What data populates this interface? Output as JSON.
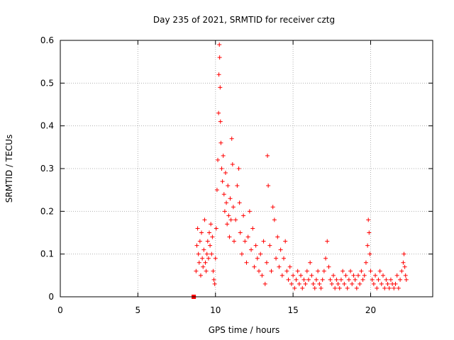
{
  "chart_data": {
    "type": "scatter",
    "title": "Day 235 of 2021, SRMTID for receiver cztg",
    "xlabel": "GPS time / hours",
    "ylabel": "SRMTID / TECUs",
    "xlim": [
      0,
      24
    ],
    "ylim": [
      0,
      0.6
    ],
    "x_ticks": [
      0,
      5,
      10,
      15,
      20
    ],
    "x_tick_labels": [
      "0",
      "5",
      "10",
      "15",
      "20"
    ],
    "y_ticks": [
      0,
      0.1,
      0.2,
      0.3,
      0.4,
      0.5,
      0.6
    ],
    "y_tick_labels": [
      "0",
      "0.1",
      "0.2",
      "0.3",
      "0.4",
      "0.5",
      "0.6"
    ],
    "grid": true,
    "marker": "+",
    "color": "#ff0000",
    "square_marker_point": {
      "x": 8.6,
      "y": 0.0
    },
    "series": [
      {
        "name": "SRMTID",
        "points": [
          [
            8.75,
            0.06
          ],
          [
            8.8,
            0.12
          ],
          [
            8.85,
            0.16
          ],
          [
            8.9,
            0.1
          ],
          [
            8.95,
            0.08
          ],
          [
            9.0,
            0.13
          ],
          [
            9.05,
            0.05
          ],
          [
            9.1,
            0.15
          ],
          [
            9.15,
            0.09
          ],
          [
            9.2,
            0.07
          ],
          [
            9.25,
            0.11
          ],
          [
            9.3,
            0.18
          ],
          [
            9.35,
            0.08
          ],
          [
            9.4,
            0.06
          ],
          [
            9.45,
            0.1
          ],
          [
            9.5,
            0.13
          ],
          [
            9.55,
            0.09
          ],
          [
            9.6,
            0.15
          ],
          [
            9.65,
            0.12
          ],
          [
            9.7,
            0.17
          ],
          [
            9.75,
            0.1
          ],
          [
            9.8,
            0.14
          ],
          [
            9.85,
            0.06
          ],
          [
            9.9,
            0.04
          ],
          [
            9.95,
            0.03
          ],
          [
            10.0,
            0.09
          ],
          [
            10.05,
            0.16
          ],
          [
            10.1,
            0.25
          ],
          [
            10.15,
            0.32
          ],
          [
            10.2,
            0.43
          ],
          [
            10.22,
            0.52
          ],
          [
            10.25,
            0.59
          ],
          [
            10.27,
            0.56
          ],
          [
            10.3,
            0.49
          ],
          [
            10.32,
            0.41
          ],
          [
            10.35,
            0.36
          ],
          [
            10.4,
            0.3
          ],
          [
            10.45,
            0.27
          ],
          [
            10.5,
            0.33
          ],
          [
            10.55,
            0.24
          ],
          [
            10.6,
            0.2
          ],
          [
            10.65,
            0.29
          ],
          [
            10.7,
            0.22
          ],
          [
            10.75,
            0.17
          ],
          [
            10.8,
            0.26
          ],
          [
            10.85,
            0.19
          ],
          [
            10.9,
            0.14
          ],
          [
            10.95,
            0.23
          ],
          [
            11.0,
            0.18
          ],
          [
            11.05,
            0.37
          ],
          [
            11.1,
            0.31
          ],
          [
            11.15,
            0.21
          ],
          [
            11.2,
            0.13
          ],
          [
            11.3,
            0.18
          ],
          [
            11.4,
            0.26
          ],
          [
            11.5,
            0.3
          ],
          [
            11.55,
            0.22
          ],
          [
            11.6,
            0.15
          ],
          [
            11.7,
            0.1
          ],
          [
            11.8,
            0.19
          ],
          [
            11.9,
            0.13
          ],
          [
            12.0,
            0.08
          ],
          [
            12.1,
            0.14
          ],
          [
            12.2,
            0.2
          ],
          [
            12.3,
            0.11
          ],
          [
            12.4,
            0.16
          ],
          [
            12.5,
            0.07
          ],
          [
            12.6,
            0.12
          ],
          [
            12.7,
            0.09
          ],
          [
            12.8,
            0.06
          ],
          [
            12.9,
            0.1
          ],
          [
            13.0,
            0.05
          ],
          [
            13.1,
            0.13
          ],
          [
            13.2,
            0.03
          ],
          [
            13.3,
            0.08
          ],
          [
            13.35,
            0.33
          ],
          [
            13.4,
            0.26
          ],
          [
            13.5,
            0.12
          ],
          [
            13.6,
            0.06
          ],
          [
            13.7,
            0.21
          ],
          [
            13.8,
            0.18
          ],
          [
            13.9,
            0.09
          ],
          [
            14.0,
            0.14
          ],
          [
            14.1,
            0.07
          ],
          [
            14.2,
            0.11
          ],
          [
            14.3,
            0.05
          ],
          [
            14.4,
            0.09
          ],
          [
            14.5,
            0.13
          ],
          [
            14.6,
            0.06
          ],
          [
            14.7,
            0.04
          ],
          [
            14.8,
            0.07
          ],
          [
            14.9,
            0.03
          ],
          [
            15.0,
            0.05
          ],
          [
            15.1,
            0.02
          ],
          [
            15.2,
            0.04
          ],
          [
            15.3,
            0.06
          ],
          [
            15.4,
            0.03
          ],
          [
            15.5,
            0.05
          ],
          [
            15.6,
            0.02
          ],
          [
            15.7,
            0.04
          ],
          [
            15.8,
            0.03
          ],
          [
            15.9,
            0.06
          ],
          [
            16.0,
            0.04
          ],
          [
            16.1,
            0.08
          ],
          [
            16.2,
            0.05
          ],
          [
            16.3,
            0.03
          ],
          [
            16.4,
            0.02
          ],
          [
            16.5,
            0.04
          ],
          [
            16.6,
            0.06
          ],
          [
            16.7,
            0.03
          ],
          [
            16.8,
            0.02
          ],
          [
            16.9,
            0.04
          ],
          [
            17.0,
            0.06
          ],
          [
            17.1,
            0.09
          ],
          [
            17.2,
            0.13
          ],
          [
            17.3,
            0.07
          ],
          [
            17.4,
            0.04
          ],
          [
            17.5,
            0.03
          ],
          [
            17.6,
            0.05
          ],
          [
            17.7,
            0.02
          ],
          [
            17.8,
            0.04
          ],
          [
            17.9,
            0.03
          ],
          [
            18.0,
            0.02
          ],
          [
            18.1,
            0.04
          ],
          [
            18.2,
            0.06
          ],
          [
            18.3,
            0.03
          ],
          [
            18.4,
            0.05
          ],
          [
            18.5,
            0.02
          ],
          [
            18.6,
            0.04
          ],
          [
            18.7,
            0.06
          ],
          [
            18.8,
            0.03
          ],
          [
            18.9,
            0.05
          ],
          [
            19.0,
            0.04
          ],
          [
            19.1,
            0.02
          ],
          [
            19.2,
            0.05
          ],
          [
            19.3,
            0.03
          ],
          [
            19.4,
            0.06
          ],
          [
            19.5,
            0.04
          ],
          [
            19.6,
            0.05
          ],
          [
            19.7,
            0.08
          ],
          [
            19.8,
            0.12
          ],
          [
            19.85,
            0.18
          ],
          [
            19.9,
            0.15
          ],
          [
            19.95,
            0.1
          ],
          [
            20.0,
            0.06
          ],
          [
            20.1,
            0.04
          ],
          [
            20.2,
            0.03
          ],
          [
            20.3,
            0.05
          ],
          [
            20.4,
            0.02
          ],
          [
            20.5,
            0.04
          ],
          [
            20.6,
            0.06
          ],
          [
            20.7,
            0.03
          ],
          [
            20.8,
            0.05
          ],
          [
            20.9,
            0.02
          ],
          [
            21.0,
            0.04
          ],
          [
            21.1,
            0.03
          ],
          [
            21.2,
            0.02
          ],
          [
            21.3,
            0.04
          ],
          [
            21.4,
            0.03
          ],
          [
            21.5,
            0.02
          ],
          [
            21.6,
            0.03
          ],
          [
            21.7,
            0.05
          ],
          [
            21.8,
            0.02
          ],
          [
            21.9,
            0.04
          ],
          [
            22.0,
            0.06
          ],
          [
            22.1,
            0.08
          ],
          [
            22.15,
            0.1
          ],
          [
            22.2,
            0.07
          ],
          [
            22.25,
            0.05
          ],
          [
            22.3,
            0.04
          ]
        ]
      }
    ]
  }
}
